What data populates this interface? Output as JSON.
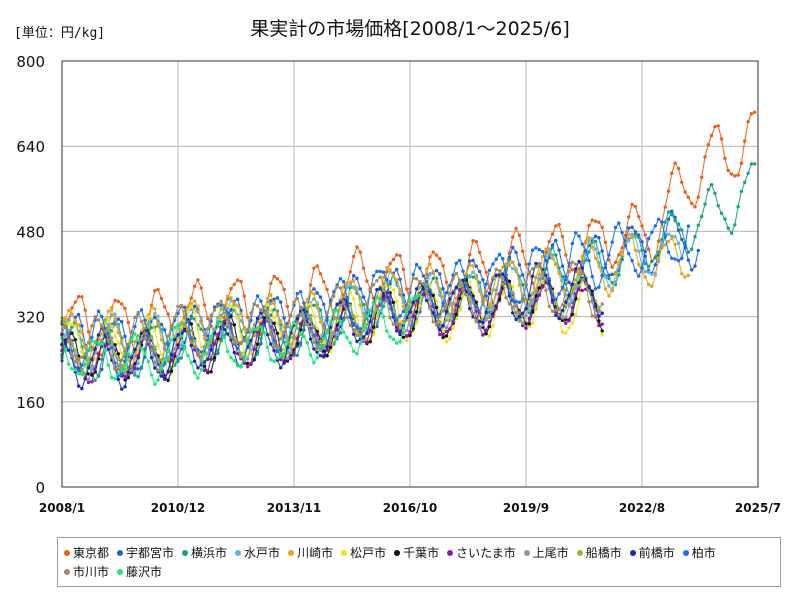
{
  "chart_data": {
    "type": "line",
    "title": "果実計の市場価格[2008/1～2025/6]",
    "unit_label": "[単位：円/kg]",
    "ylim": [
      0,
      800
    ],
    "yticks": [
      "0",
      "160",
      "320",
      "480",
      "640",
      "800"
    ],
    "xticks": [
      "2008/1",
      "2010/12",
      "2013/11",
      "2016/10",
      "2019/9",
      "2022/8",
      "2025/7"
    ],
    "grid": true,
    "legend_position": "bottom",
    "series": [
      {
        "name": "東京都",
        "color": "#e8611a",
        "anchors": [
          [
            2008.0,
            300
          ],
          [
            2009.5,
            300
          ],
          [
            2011.0,
            330
          ],
          [
            2012.5,
            335
          ],
          [
            2014.0,
            340
          ],
          [
            2015.5,
            395
          ],
          [
            2017.0,
            385
          ],
          [
            2018.5,
            400
          ],
          [
            2020.0,
            430
          ],
          [
            2021.5,
            460
          ],
          [
            2022.8,
            480
          ],
          [
            2024.0,
            600
          ],
          [
            2025.5,
            660
          ]
        ],
        "amp": 55,
        "end": 2025.45
      },
      {
        "name": "宇都宮市",
        "color": "#1f5fd6",
        "anchors": [
          [
            2008.0,
            265
          ],
          [
            2010.0,
            265
          ],
          [
            2012.0,
            300
          ],
          [
            2014.0,
            310
          ],
          [
            2016.0,
            355
          ],
          [
            2018.0,
            370
          ],
          [
            2020.0,
            395
          ],
          [
            2022.0,
            440
          ],
          [
            2024.0,
            470
          ]
        ],
        "amp": 50,
        "end": 2024.0
      },
      {
        "name": "横浜市",
        "color": "#1aa37a",
        "anchors": [
          [
            2008.0,
            255
          ],
          [
            2010.0,
            255
          ],
          [
            2012.0,
            285
          ],
          [
            2014.0,
            290
          ],
          [
            2016.0,
            345
          ],
          [
            2018.0,
            355
          ],
          [
            2020.0,
            385
          ],
          [
            2022.0,
            425
          ],
          [
            2023.5,
            480
          ],
          [
            2025.5,
            560
          ]
        ],
        "amp": 45,
        "end": 2025.45
      },
      {
        "name": "水戸市",
        "color": "#5ab4e8",
        "anchors": [
          [
            2008.0,
            275
          ],
          [
            2010.0,
            270
          ],
          [
            2012.0,
            305
          ],
          [
            2014.0,
            300
          ],
          [
            2016.0,
            350
          ],
          [
            2018.0,
            360
          ],
          [
            2020.0,
            385
          ],
          [
            2022.0,
            425
          ],
          [
            2024.0,
            450
          ]
        ],
        "amp": 45,
        "end": 2023.6
      },
      {
        "name": "川崎市",
        "color": "#e8a21a",
        "anchors": [
          [
            2008.0,
            290
          ],
          [
            2010.0,
            280
          ],
          [
            2012.0,
            315
          ],
          [
            2014.0,
            315
          ],
          [
            2016.0,
            360
          ],
          [
            2018.0,
            370
          ],
          [
            2020.0,
            395
          ],
          [
            2022.0,
            420
          ],
          [
            2024.0,
            430
          ]
        ],
        "amp": 45,
        "end": 2023.8
      },
      {
        "name": "松戸市",
        "color": "#f0e21a",
        "anchors": [
          [
            2008.0,
            270
          ],
          [
            2010.0,
            260
          ],
          [
            2012.0,
            295
          ],
          [
            2014.0,
            290
          ],
          [
            2016.0,
            330
          ],
          [
            2018.0,
            330
          ],
          [
            2020.0,
            345
          ],
          [
            2021.6,
            330
          ]
        ],
        "amp": 50,
        "end": 2021.6
      },
      {
        "name": "千葉市",
        "color": "#111111",
        "anchors": [
          [
            2008.0,
            245
          ],
          [
            2010.0,
            245
          ],
          [
            2012.0,
            270
          ],
          [
            2014.0,
            280
          ],
          [
            2016.0,
            320
          ],
          [
            2018.0,
            335
          ],
          [
            2020.0,
            350
          ],
          [
            2021.6,
            345
          ]
        ],
        "amp": 45,
        "end": 2021.6
      },
      {
        "name": "さいたま市",
        "color": "#8b1aa3",
        "anchors": [
          [
            2008.0,
            235
          ],
          [
            2010.0,
            240
          ],
          [
            2012.0,
            270
          ],
          [
            2014.0,
            275
          ],
          [
            2016.0,
            320
          ],
          [
            2018.0,
            330
          ],
          [
            2020.0,
            345
          ],
          [
            2021.6,
            340
          ]
        ],
        "amp": 40,
        "end": 2021.6
      },
      {
        "name": "上尾市",
        "color": "#8a98a8",
        "anchors": [
          [
            2008.0,
            250
          ],
          [
            2010.0,
            250
          ],
          [
            2012.0,
            285
          ],
          [
            2014.0,
            285
          ],
          [
            2016.0,
            325
          ],
          [
            2018.0,
            340
          ],
          [
            2020.0,
            360
          ],
          [
            2021.6,
            355
          ]
        ],
        "amp": 40,
        "end": 2021.6
      },
      {
        "name": "船橋市",
        "color": "#8fb83a",
        "anchors": [
          [
            2008.0,
            265
          ],
          [
            2010.0,
            260
          ],
          [
            2012.0,
            290
          ],
          [
            2014.0,
            290
          ],
          [
            2016.0,
            335
          ],
          [
            2018.0,
            345
          ],
          [
            2020.0,
            365
          ],
          [
            2021.6,
            365
          ]
        ],
        "amp": 40,
        "end": 2021.6
      },
      {
        "name": "前橋市",
        "color": "#1a2ab8",
        "anchors": [
          [
            2008.0,
            240
          ],
          [
            2010.0,
            240
          ],
          [
            2012.0,
            270
          ],
          [
            2014.0,
            280
          ],
          [
            2016.0,
            330
          ],
          [
            2018.0,
            345
          ],
          [
            2020.0,
            370
          ],
          [
            2021.6,
            370
          ]
        ],
        "amp": 45,
        "end": 2021.6
      },
      {
        "name": "柏市",
        "color": "#1a6ee8",
        "anchors": [
          [
            2008.0,
            270
          ],
          [
            2010.0,
            270
          ],
          [
            2012.0,
            305
          ],
          [
            2014.0,
            310
          ],
          [
            2016.0,
            360
          ],
          [
            2018.0,
            375
          ],
          [
            2020.0,
            400
          ],
          [
            2022.0,
            440
          ],
          [
            2023.8,
            470
          ]
        ],
        "amp": 50,
        "end": 2023.8
      },
      {
        "name": "市川市",
        "color": "#a88a5a",
        "anchors": [
          [
            2008.0,
            275
          ],
          [
            2010.0,
            270
          ],
          [
            2012.0,
            305
          ],
          [
            2014.0,
            305
          ],
          [
            2016.0,
            345
          ],
          [
            2018.0,
            355
          ],
          [
            2020.0,
            375
          ],
          [
            2021.6,
            370
          ]
        ],
        "amp": 45,
        "end": 2021.6
      },
      {
        "name": "藤沢市",
        "color": "#1ae87a",
        "anchors": [
          [
            2008.0,
            245
          ],
          [
            2010.0,
            240
          ],
          [
            2012.0,
            265
          ],
          [
            2014.0,
            270
          ],
          [
            2016.0,
            310
          ],
          [
            2017.0,
            320
          ]
        ],
        "amp": 40,
        "end": 2017.0
      }
    ]
  }
}
